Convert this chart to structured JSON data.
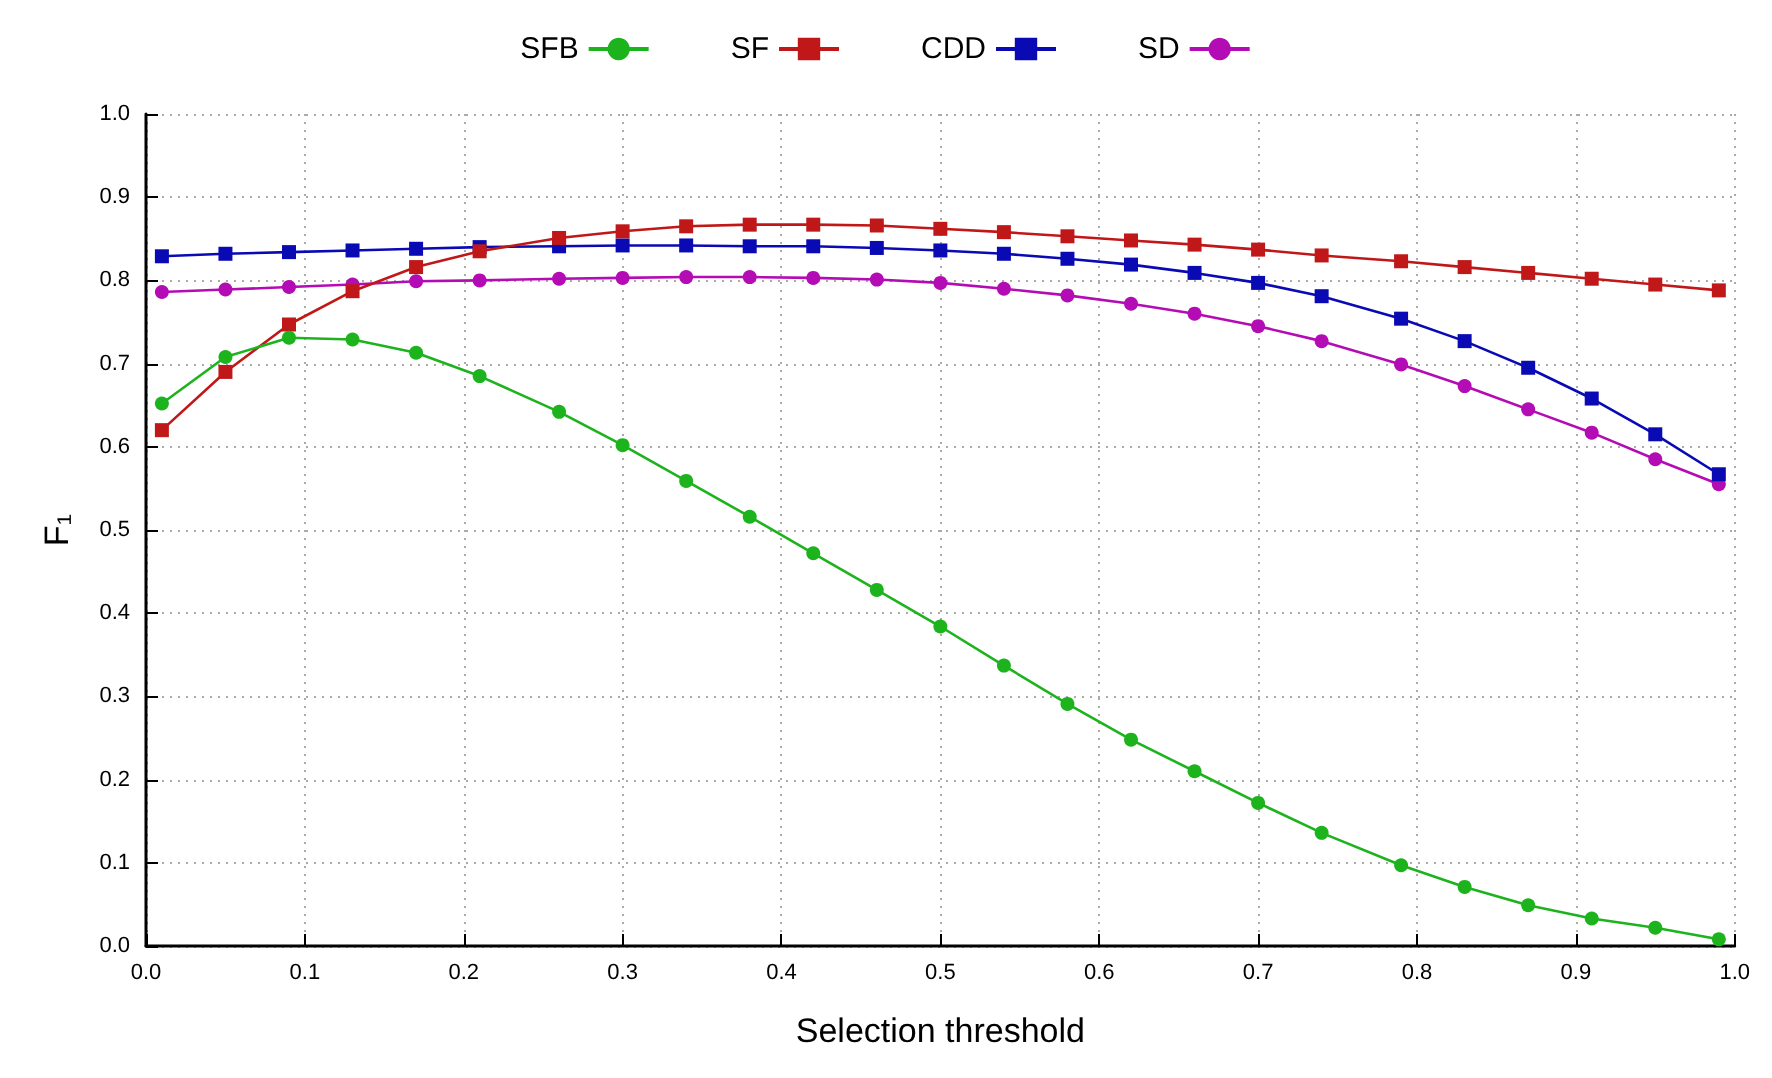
{
  "chart_data": {
    "type": "line",
    "xlabel": "Selection threshold",
    "ylabel": "F₁",
    "x": [
      0.01,
      0.05,
      0.09,
      0.13,
      0.17,
      0.21,
      0.26,
      0.3,
      0.34,
      0.38,
      0.42,
      0.46,
      0.5,
      0.54,
      0.58,
      0.62,
      0.66,
      0.7,
      0.74,
      0.79,
      0.83,
      0.87,
      0.91,
      0.95,
      0.99
    ],
    "series": [
      {
        "name": "SFB",
        "color": "#1db31d",
        "marker": "circle",
        "values": [
          0.652,
          0.708,
          0.731,
          0.729,
          0.713,
          0.685,
          0.642,
          0.602,
          0.559,
          0.516,
          0.472,
          0.428,
          0.384,
          0.337,
          0.291,
          0.248,
          0.21,
          0.172,
          0.136,
          0.097,
          0.071,
          0.049,
          0.033,
          0.022,
          0.008
        ]
      },
      {
        "name": "SF",
        "color": "#c01818",
        "marker": "square",
        "values": [
          0.62,
          0.69,
          0.747,
          0.787,
          0.816,
          0.835,
          0.851,
          0.859,
          0.865,
          0.867,
          0.867,
          0.866,
          0.862,
          0.858,
          0.853,
          0.848,
          0.843,
          0.837,
          0.83,
          0.823,
          0.816,
          0.809,
          0.802,
          0.795,
          0.788
        ]
      },
      {
        "name": "CDD",
        "color": "#0a0ab4",
        "marker": "square",
        "values": [
          0.829,
          0.832,
          0.834,
          0.836,
          0.838,
          0.84,
          0.841,
          0.842,
          0.842,
          0.841,
          0.841,
          0.839,
          0.836,
          0.832,
          0.826,
          0.819,
          0.809,
          0.797,
          0.781,
          0.754,
          0.727,
          0.695,
          0.658,
          0.615,
          0.567
        ]
      },
      {
        "name": "SD",
        "color": "#b40cb4",
        "marker": "circle",
        "values": [
          0.786,
          0.789,
          0.792,
          0.795,
          0.799,
          0.8,
          0.802,
          0.803,
          0.804,
          0.804,
          0.803,
          0.801,
          0.797,
          0.79,
          0.782,
          0.772,
          0.76,
          0.745,
          0.727,
          0.699,
          0.673,
          0.645,
          0.617,
          0.585,
          0.555
        ]
      }
    ],
    "xlim": [
      0,
      1
    ],
    "ylim": [
      0,
      1
    ],
    "xticks": [
      {
        "value": 0,
        "label": "0.0"
      },
      {
        "value": 0.1,
        "label": "0.1"
      },
      {
        "value": 0.2,
        "label": "0.2"
      },
      {
        "value": 0.3,
        "label": "0.3"
      },
      {
        "value": 0.4,
        "label": "0.4"
      },
      {
        "value": 0.5,
        "label": "0.5"
      },
      {
        "value": 0.6,
        "label": "0.6"
      },
      {
        "value": 0.7,
        "label": "0.7"
      },
      {
        "value": 0.8,
        "label": "0.8"
      },
      {
        "value": 0.9,
        "label": "0.9"
      },
      {
        "value": 1,
        "label": "1.0"
      }
    ],
    "yticks": [
      {
        "value": 0,
        "label": "0.0"
      },
      {
        "value": 0.1,
        "label": "0.1"
      },
      {
        "value": 0.2,
        "label": "0.2"
      },
      {
        "value": 0.3,
        "label": "0.3"
      },
      {
        "value": 0.4,
        "label": "0.4"
      },
      {
        "value": 0.5,
        "label": "0.5"
      },
      {
        "value": 0.6,
        "label": "0.6"
      },
      {
        "value": 0.7,
        "label": "0.7"
      },
      {
        "value": 0.8,
        "label": "0.8"
      },
      {
        "value": 0.9,
        "label": "0.9"
      },
      {
        "value": 1,
        "label": "1.0"
      }
    ],
    "grid": true,
    "legend": "top",
    "line_style": "solid"
  }
}
